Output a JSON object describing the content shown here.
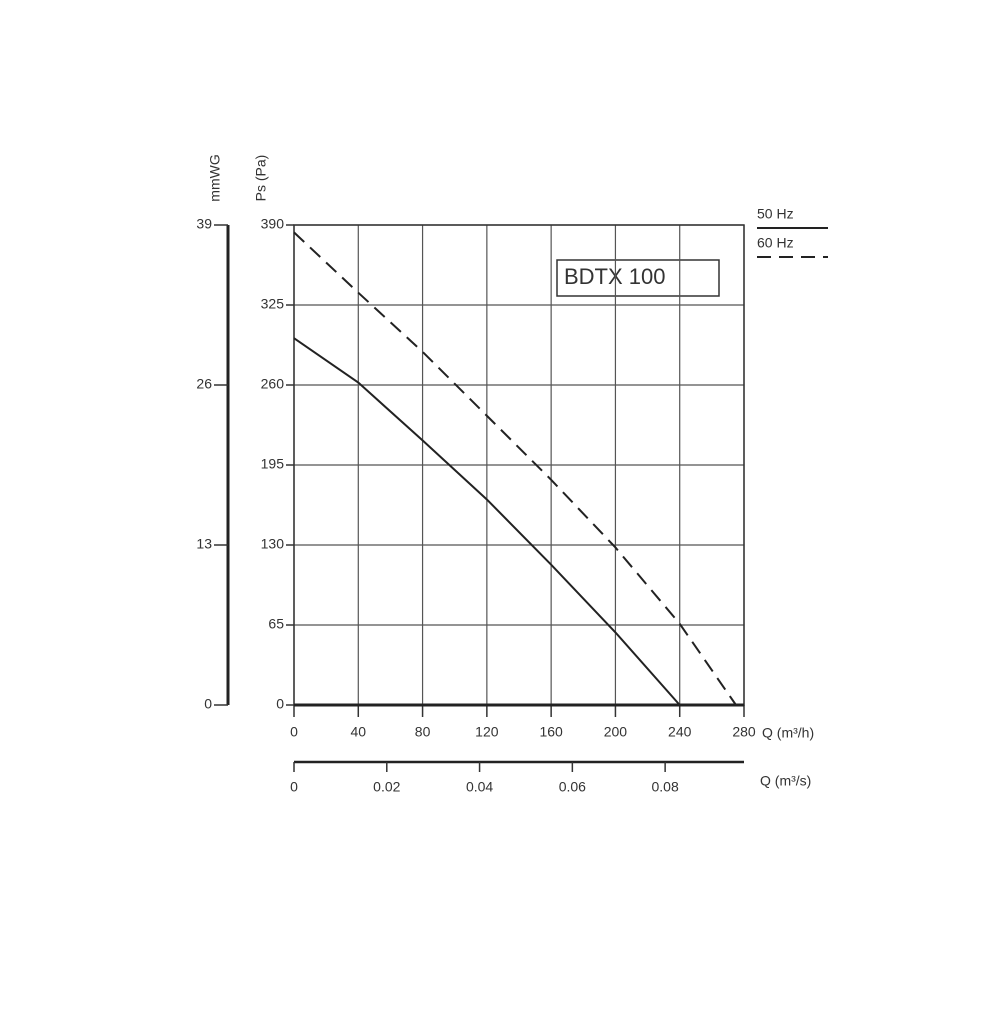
{
  "chart_data": {
    "type": "line",
    "annotation": "BDTX 100",
    "xlabel": "Q (m³/h)",
    "x2label": "Q (m³/s)",
    "ylabel": "Ps (Pa)",
    "y2label": "mmWG",
    "xlim": [
      0,
      280
    ],
    "xticks": [
      0,
      40,
      80,
      120,
      160,
      200,
      240,
      280
    ],
    "x2lim": [
      0,
      0.097
    ],
    "x2ticks": [
      0,
      0.02,
      0.04,
      0.06,
      0.08
    ],
    "ylim": [
      0,
      390
    ],
    "yticks": [
      0,
      65,
      130,
      195,
      260,
      325,
      390
    ],
    "y2lim": [
      0,
      39
    ],
    "y2ticks": [
      0,
      13,
      26,
      39
    ],
    "grid": true,
    "legend": "upper right",
    "series": [
      {
        "name": "50 Hz",
        "color": "#222222",
        "dash": false,
        "x": [
          0,
          40,
          80,
          120,
          160,
          200,
          240
        ],
        "values": [
          298,
          262,
          215,
          167,
          114,
          59,
          0
        ]
      },
      {
        "name": "60 Hz",
        "color": "#222222",
        "dash": true,
        "x": [
          0,
          40,
          80,
          120,
          160,
          200,
          240,
          275
        ],
        "values": [
          384,
          335,
          287,
          235,
          183,
          128,
          66,
          0
        ]
      }
    ]
  }
}
